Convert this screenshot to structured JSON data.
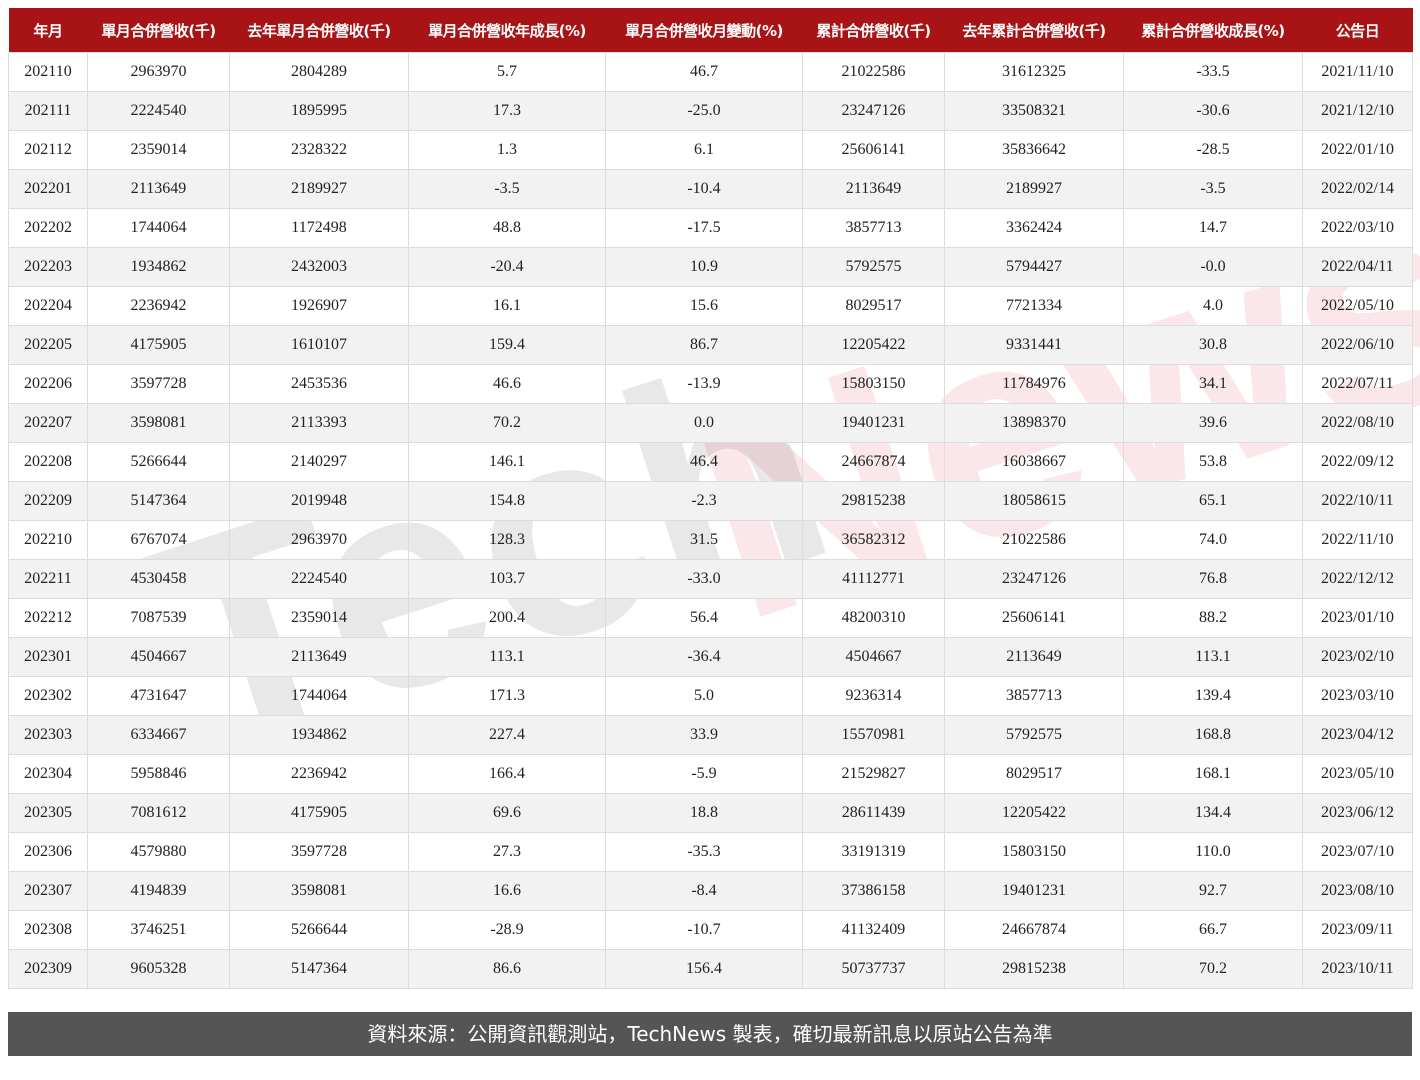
{
  "watermark": {
    "part1": "Tech",
    "part2": "News"
  },
  "table": {
    "header_color": "#a81416",
    "columns": [
      "年月",
      "單月合併營收(千)",
      "去年單月合併營收(千)",
      "單月合併營收年成長(%)",
      "單月合併營收月變動(%)",
      "累計合併營收(千)",
      "去年累計合併營收(千)",
      "累計合併營收成長(%)",
      "公告日"
    ],
    "rows": [
      [
        "202110",
        "2963970",
        "2804289",
        "5.7",
        "46.7",
        "21022586",
        "31612325",
        "-33.5",
        "2021/11/10"
      ],
      [
        "202111",
        "2224540",
        "1895995",
        "17.3",
        "-25.0",
        "23247126",
        "33508321",
        "-30.6",
        "2021/12/10"
      ],
      [
        "202112",
        "2359014",
        "2328322",
        "1.3",
        "6.1",
        "25606141",
        "35836642",
        "-28.5",
        "2022/01/10"
      ],
      [
        "202201",
        "2113649",
        "2189927",
        "-3.5",
        "-10.4",
        "2113649",
        "2189927",
        "-3.5",
        "2022/02/14"
      ],
      [
        "202202",
        "1744064",
        "1172498",
        "48.8",
        "-17.5",
        "3857713",
        "3362424",
        "14.7",
        "2022/03/10"
      ],
      [
        "202203",
        "1934862",
        "2432003",
        "-20.4",
        "10.9",
        "5792575",
        "5794427",
        "-0.0",
        "2022/04/11"
      ],
      [
        "202204",
        "2236942",
        "1926907",
        "16.1",
        "15.6",
        "8029517",
        "7721334",
        "4.0",
        "2022/05/10"
      ],
      [
        "202205",
        "4175905",
        "1610107",
        "159.4",
        "86.7",
        "12205422",
        "9331441",
        "30.8",
        "2022/06/10"
      ],
      [
        "202206",
        "3597728",
        "2453536",
        "46.6",
        "-13.9",
        "15803150",
        "11784976",
        "34.1",
        "2022/07/11"
      ],
      [
        "202207",
        "3598081",
        "2113393",
        "70.2",
        "0.0",
        "19401231",
        "13898370",
        "39.6",
        "2022/08/10"
      ],
      [
        "202208",
        "5266644",
        "2140297",
        "146.1",
        "46.4",
        "24667874",
        "16038667",
        "53.8",
        "2022/09/12"
      ],
      [
        "202209",
        "5147364",
        "2019948",
        "154.8",
        "-2.3",
        "29815238",
        "18058615",
        "65.1",
        "2022/10/11"
      ],
      [
        "202210",
        "6767074",
        "2963970",
        "128.3",
        "31.5",
        "36582312",
        "21022586",
        "74.0",
        "2022/11/10"
      ],
      [
        "202211",
        "4530458",
        "2224540",
        "103.7",
        "-33.0",
        "41112771",
        "23247126",
        "76.8",
        "2022/12/12"
      ],
      [
        "202212",
        "7087539",
        "2359014",
        "200.4",
        "56.4",
        "48200310",
        "25606141",
        "88.2",
        "2023/01/10"
      ],
      [
        "202301",
        "4504667",
        "2113649",
        "113.1",
        "-36.4",
        "4504667",
        "2113649",
        "113.1",
        "2023/02/10"
      ],
      [
        "202302",
        "4731647",
        "1744064",
        "171.3",
        "5.0",
        "9236314",
        "3857713",
        "139.4",
        "2023/03/10"
      ],
      [
        "202303",
        "6334667",
        "1934862",
        "227.4",
        "33.9",
        "15570981",
        "5792575",
        "168.8",
        "2023/04/12"
      ],
      [
        "202304",
        "5958846",
        "2236942",
        "166.4",
        "-5.9",
        "21529827",
        "8029517",
        "168.1",
        "2023/05/10"
      ],
      [
        "202305",
        "7081612",
        "4175905",
        "69.6",
        "18.8",
        "28611439",
        "12205422",
        "134.4",
        "2023/06/12"
      ],
      [
        "202306",
        "4579880",
        "3597728",
        "27.3",
        "-35.3",
        "33191319",
        "15803150",
        "110.0",
        "2023/07/10"
      ],
      [
        "202307",
        "4194839",
        "3598081",
        "16.6",
        "-8.4",
        "37386158",
        "19401231",
        "92.7",
        "2023/08/10"
      ],
      [
        "202308",
        "3746251",
        "5266644",
        "-28.9",
        "-10.7",
        "41132409",
        "24667874",
        "66.7",
        "2023/09/11"
      ],
      [
        "202309",
        "9605328",
        "5147364",
        "86.6",
        "156.4",
        "50737737",
        "29815238",
        "70.2",
        "2023/10/11"
      ]
    ]
  },
  "footer": {
    "text": "資料來源：公開資訊觀測站，TechNews 製表，確切最新訊息以原站公告為準"
  }
}
